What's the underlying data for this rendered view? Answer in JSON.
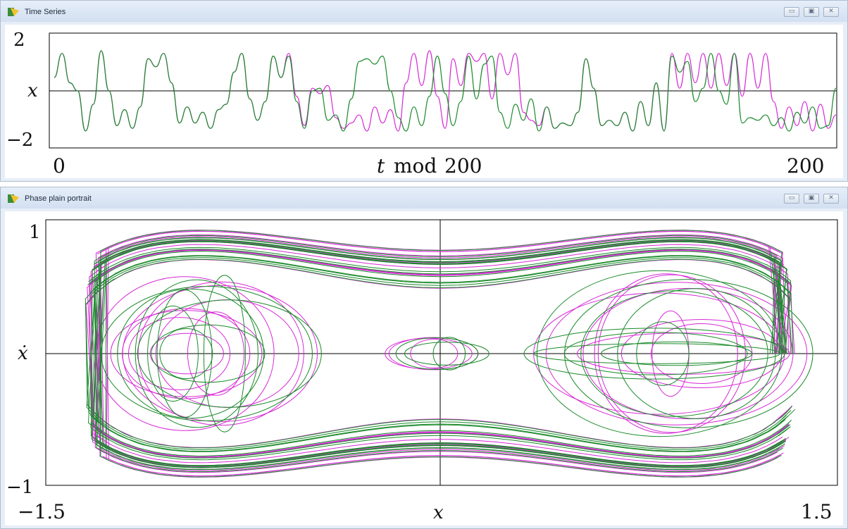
{
  "windows": {
    "time_series": {
      "title": "Time Series"
    },
    "phase": {
      "title": "Phase plain portrait"
    }
  },
  "window_controls": {
    "minimize": "▭",
    "maximize": "▣",
    "close": "✕"
  },
  "colors": {
    "series_a": "#1a8a2a",
    "series_b": "#d62ad6",
    "axis": "#000000"
  },
  "chart_data": [
    {
      "type": "line",
      "ylabel": "x",
      "xlabel_t": "t",
      "xlabel_mod": "mod",
      "xlabel_n": "200",
      "xlim": [
        0,
        200
      ],
      "ylim": [
        -2,
        2
      ],
      "x_ticks": [
        "0",
        "200"
      ],
      "y_ticks": [
        "2",
        "−2"
      ],
      "grid": false,
      "series": [
        {
          "color": "#1a8a2a",
          "x": [
            0,
            2,
            4,
            6,
            8,
            10,
            12,
            14,
            16,
            18,
            20,
            22,
            24,
            26,
            28,
            30,
            32,
            34,
            36,
            38,
            40,
            42,
            44,
            46,
            48,
            50,
            52,
            54,
            56,
            58,
            60,
            62,
            64,
            66,
            68,
            70,
            72,
            74,
            76,
            78,
            80,
            82,
            84,
            86,
            88,
            90,
            92,
            94,
            96,
            98,
            100,
            102,
            104,
            106,
            108,
            110,
            112,
            114,
            116,
            118,
            120,
            122,
            124,
            126,
            128,
            130,
            132,
            134,
            136,
            138,
            140,
            142,
            144,
            146,
            148,
            150,
            152,
            154,
            156,
            158,
            160,
            162,
            164,
            166,
            168,
            170,
            172,
            174,
            176,
            178,
            180,
            182,
            184,
            186,
            188,
            190,
            192,
            194,
            196,
            198,
            200
          ],
          "y": [
            0.5,
            1.4,
            0.3,
            0,
            -1.5,
            -0.5,
            1.5,
            0,
            -1.3,
            -0.7,
            -1.4,
            -0.6,
            1.2,
            0.9,
            1.4,
            0.3,
            -1.2,
            -0.6,
            -1.2,
            -0.8,
            -1.4,
            -0.7,
            -0.5,
            0.7,
            1.4,
            -0.3,
            -1.1,
            -0.4,
            1.3,
            0.5,
            1.3,
            -0.4,
            -1.4,
            0,
            0.1,
            -1.1,
            -0.9,
            -1.5,
            -0.3,
            1.1,
            1.2,
            1.0,
            1.3,
            0,
            -1.0,
            -1.5,
            -0.6,
            -1.3,
            -0.2,
            1.3,
            -0.1,
            -1.3,
            -0.4,
            1.3,
            -0.3,
            1.0,
            1.3,
            -0.8,
            -1.4,
            -0.5,
            -1.1,
            -0.3,
            -1.5,
            -0.6,
            -1.4,
            -1.2,
            -1.3,
            -0.8,
            1.2,
            0.1,
            -1.3,
            -1.1,
            -1.3,
            -0.8,
            -1.5,
            -0.4,
            -1.3,
            0.3,
            -1.5,
            1.3,
            0.7,
            1.1,
            -0.4,
            0.1,
            1.4,
            0,
            -0.5,
            1.4,
            -1.2,
            -1.0,
            -1.1,
            -0.9,
            -1.3,
            -1.0,
            -1.5,
            -0.8,
            -1.2,
            -0.6,
            -1.4,
            -1.3,
            0.1
          ]
        },
        {
          "color": "#d62ad6",
          "x": [
            0,
            2,
            4,
            6,
            8,
            10,
            12,
            14,
            16,
            18,
            20,
            22,
            24,
            26,
            28,
            30,
            32,
            34,
            36,
            38,
            40,
            42,
            44,
            46,
            48,
            50,
            52,
            54,
            56,
            58,
            60,
            62,
            64,
            66,
            68,
            70,
            72,
            74,
            76,
            78,
            80,
            82,
            84,
            86,
            88,
            90,
            92,
            94,
            96,
            98,
            100,
            102,
            104,
            106,
            108,
            110,
            112,
            114,
            116,
            118,
            120,
            122,
            124,
            126,
            128,
            130,
            132,
            134,
            136,
            138,
            140,
            142,
            144,
            146,
            148,
            150,
            152,
            154,
            156,
            158,
            160,
            162,
            164,
            166,
            168,
            170,
            172,
            174,
            176,
            178,
            180,
            182,
            184,
            186,
            188,
            190,
            192,
            194,
            196,
            198,
            200
          ],
          "y": [
            0.5,
            1.4,
            0.3,
            0,
            -1.5,
            -0.5,
            1.5,
            0,
            -1.3,
            -0.7,
            -1.4,
            -0.6,
            1.2,
            0.9,
            1.4,
            0.3,
            -1.2,
            -0.6,
            -1.2,
            -0.8,
            -1.4,
            -0.7,
            -0.5,
            0.7,
            1.4,
            -0.3,
            -1.1,
            -0.4,
            1.3,
            0.5,
            1.4,
            -0.2,
            -1.3,
            0.1,
            -0.1,
            0.2,
            -1.0,
            -1.4,
            -1.2,
            -0.9,
            -1.5,
            -0.6,
            -1.2,
            -0.7,
            -1.5,
            0.3,
            1.4,
            0.2,
            1.5,
            -0.2,
            -1.4,
            1.2,
            0.2,
            1.4,
            1.1,
            1.4,
            -0.3,
            1.4,
            0.6,
            1.4,
            -0.8,
            -1.1,
            -1.3,
            -0.6,
            -1.4,
            -1.2,
            -1.3,
            -0.8,
            1.2,
            0.1,
            -1.3,
            -1.1,
            -1.3,
            -0.8,
            -1.5,
            -0.4,
            -1.3,
            0.3,
            -1.5,
            1.4,
            0.1,
            1.4,
            0.3,
            1.4,
            0.1,
            1.4,
            0.2,
            1.4,
            -0.2,
            1.4,
            0.1,
            1.4,
            -0.4,
            -1.4,
            -0.6,
            -1.3,
            -0.4,
            -1.5,
            -0.5,
            -1.4,
            -0.9
          ]
        }
      ]
    },
    {
      "type": "line",
      "ylabel": "ẋ",
      "xlabel": "x",
      "xlim": [
        -1.5,
        1.5
      ],
      "ylim": [
        -1,
        1
      ],
      "x_ticks": [
        "−1.5",
        "1.5"
      ],
      "y_ticks": [
        "1",
        "−1"
      ],
      "grid": false,
      "series": [
        {
          "color": "#1a8a2a",
          "kind": "duffing_orbits",
          "x_left_lobe_center": -1.0,
          "x_right_lobe_center": 1.0
        },
        {
          "color": "#d62ad6",
          "kind": "duffing_orbits",
          "x_left_lobe_center": -1.0,
          "x_right_lobe_center": 1.0
        }
      ]
    }
  ]
}
